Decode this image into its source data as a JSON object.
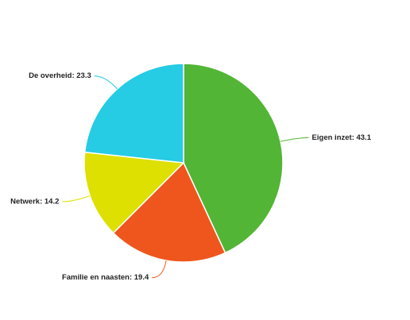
{
  "chart_data": {
    "type": "pie",
    "values": [
      43.1,
      19.4,
      14.2,
      23.3
    ],
    "value_labels": [
      "Eigen inzet: 43.1",
      "Familie en naasten: 19.4",
      "Netwerk: 14.2",
      "De overheid: 23.3"
    ],
    "colors": [
      "#52b535",
      "#ef561e",
      "#dde000",
      "#26cbe4"
    ]
  }
}
